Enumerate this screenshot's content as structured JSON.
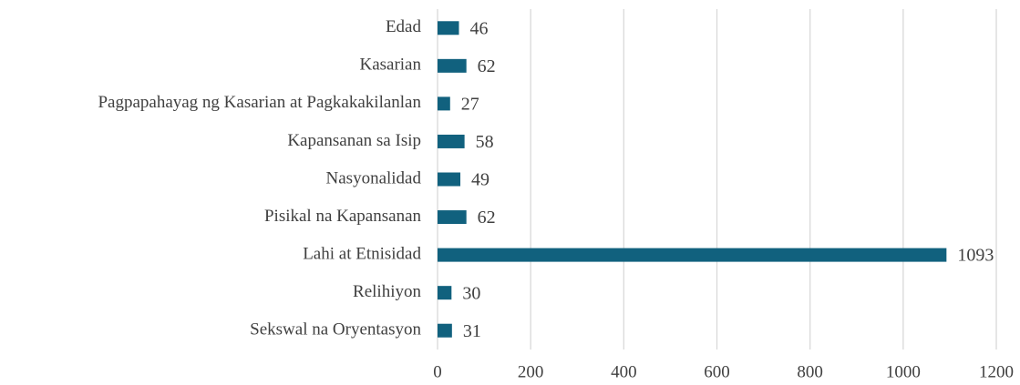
{
  "chart_data": {
    "type": "bar",
    "orientation": "horizontal",
    "categories": [
      "Edad",
      "Kasarian",
      "Pagpapahayag ng Kasarian at Pagkakakilanlan",
      "Kapansanan sa Isip",
      "Nasyonalidad",
      "Pisikal na Kapansanan",
      "Lahi at Etnisidad",
      "Relihiyon",
      "Sekswal na Oryentasyon"
    ],
    "values": [
      46,
      62,
      27,
      58,
      49,
      62,
      1093,
      30,
      31
    ],
    "color": "#11617e",
    "xlim": [
      0,
      1200
    ],
    "xticks": [
      0,
      200,
      400,
      600,
      800,
      1000,
      1200
    ],
    "grid": true
  }
}
